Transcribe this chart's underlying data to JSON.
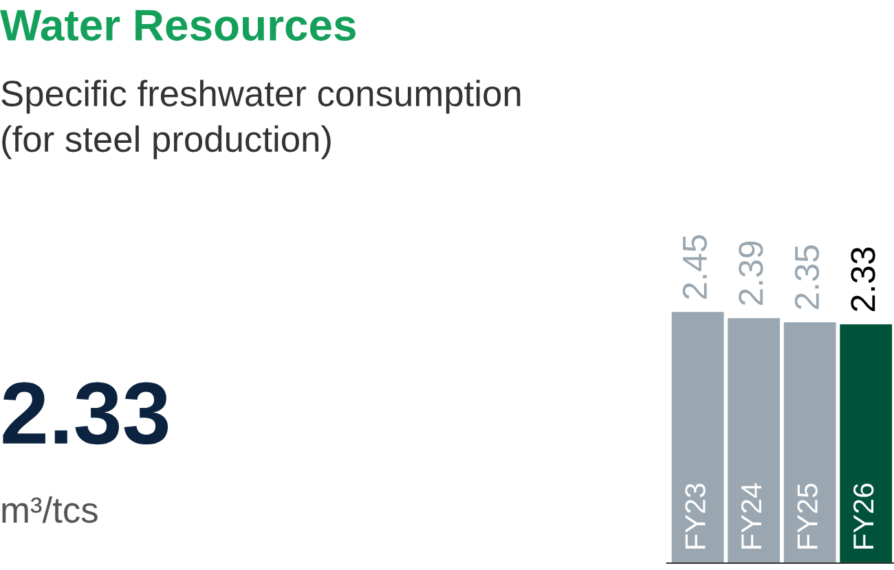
{
  "chart_data": {
    "type": "bar",
    "title": "Water Resources",
    "subtitle": "Specific freshwater consumption\n(for steel production)",
    "annotations": [
      "2.33",
      "m³/tcs"
    ],
    "categories": [
      "FY23",
      "FY24",
      "FY25",
      "FY26"
    ],
    "values": [
      2.45,
      2.39,
      2.35,
      2.33
    ],
    "colors": [
      "#9aa7b1",
      "#9aa7b1",
      "#9aa7b1",
      "#00533a"
    ],
    "tick_labels": false,
    "data_labels": true
  }
}
